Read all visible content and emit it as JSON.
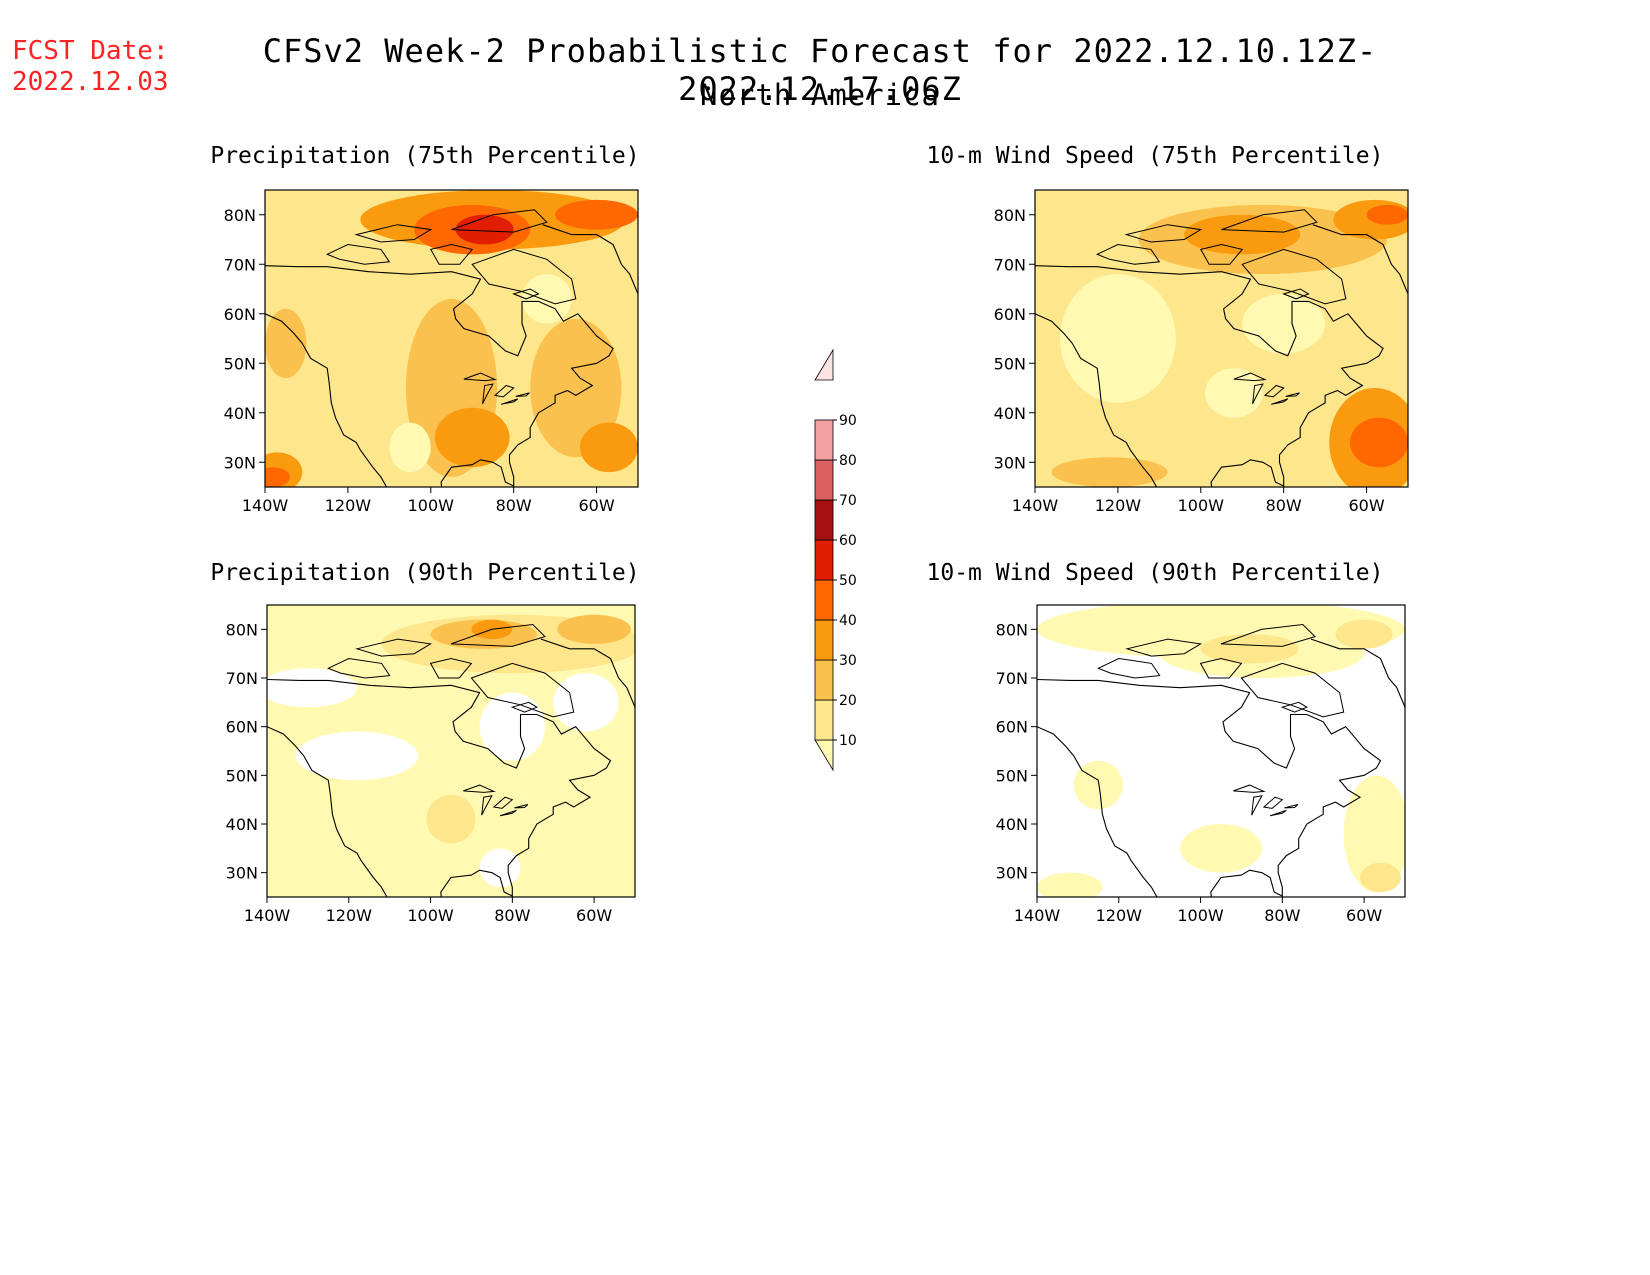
{
  "fcst": {
    "label": "FCST Date:",
    "date": "2022.12.03"
  },
  "title": {
    "main": "CFSv2 Week-2 Probabilistic Forecast for 2022.12.10.12Z-2022.12.17.06Z",
    "region": "North America"
  },
  "axes": {
    "lat_labels": [
      "30N",
      "40N",
      "50N",
      "60N",
      "70N",
      "80N"
    ],
    "lat_values": [
      30,
      40,
      50,
      60,
      70,
      80
    ],
    "lon_labels": [
      "140W",
      "120W",
      "100W",
      "80W",
      "60W"
    ],
    "lon_values": [
      -140,
      -120,
      -100,
      -80,
      -60
    ],
    "lat_range": [
      25,
      85
    ],
    "lon_range": [
      -140,
      -50
    ]
  },
  "panels": [
    {
      "title": "Precipitation (75th Percentile)",
      "base_level": 20,
      "blobs": [
        {
          "lon": -95,
          "lat": 45,
          "rx": 11,
          "ry": 18,
          "level": 30
        },
        {
          "lon": -90,
          "lat": 35,
          "rx": 9,
          "ry": 6,
          "level": 40
        },
        {
          "lon": -65,
          "lat": 45,
          "rx": 11,
          "ry": 14,
          "level": 30
        },
        {
          "lon": -57,
          "lat": 33,
          "rx": 7,
          "ry": 5,
          "level": 40
        },
        {
          "lon": -85,
          "lat": 79,
          "rx": 32,
          "ry": 6,
          "level": 40
        },
        {
          "lon": -90,
          "lat": 77,
          "rx": 14,
          "ry": 5,
          "level": 50
        },
        {
          "lon": -87,
          "lat": 77,
          "rx": 7,
          "ry": 3,
          "level": 60
        },
        {
          "lon": -60,
          "lat": 80,
          "rx": 10,
          "ry": 3,
          "level": 50
        },
        {
          "lon": -137,
          "lat": 28,
          "rx": 6,
          "ry": 4,
          "level": 40
        },
        {
          "lon": -138,
          "lat": 27,
          "rx": 4,
          "ry": 2,
          "level": 50
        },
        {
          "lon": -135,
          "lat": 54,
          "rx": 5,
          "ry": 7,
          "level": 30
        },
        {
          "lon": -72,
          "lat": 63,
          "rx": 6,
          "ry": 5,
          "level": 10
        },
        {
          "lon": -105,
          "lat": 33,
          "rx": 5,
          "ry": 5,
          "level": 10
        }
      ]
    },
    {
      "title": "10-m Wind Speed (75th Percentile)",
      "base_level": 20,
      "blobs": [
        {
          "lon": -58,
          "lat": 34,
          "rx": 11,
          "ry": 11,
          "level": 40
        },
        {
          "lon": -57,
          "lat": 34,
          "rx": 7,
          "ry": 5,
          "level": 50
        },
        {
          "lon": -85,
          "lat": 75,
          "rx": 30,
          "ry": 7,
          "level": 30
        },
        {
          "lon": -90,
          "lat": 76,
          "rx": 14,
          "ry": 4,
          "level": 40
        },
        {
          "lon": -58,
          "lat": 79,
          "rx": 10,
          "ry": 4,
          "level": 40
        },
        {
          "lon": -55,
          "lat": 80,
          "rx": 5,
          "ry": 2,
          "level": 50
        },
        {
          "lon": -120,
          "lat": 55,
          "rx": 14,
          "ry": 13,
          "level": 10
        },
        {
          "lon": -80,
          "lat": 58,
          "rx": 10,
          "ry": 6,
          "level": 10
        },
        {
          "lon": -122,
          "lat": 28,
          "rx": 14,
          "ry": 3,
          "level": 30
        },
        {
          "lon": -92,
          "lat": 44,
          "rx": 7,
          "ry": 5,
          "level": 10
        }
      ]
    },
    {
      "title": "Precipitation (90th Percentile)",
      "base_level": 10,
      "blobs": [
        {
          "lon": -80,
          "lat": 77,
          "rx": 32,
          "ry": 6,
          "level": 20
        },
        {
          "lon": -87,
          "lat": 79,
          "rx": 13,
          "ry": 3,
          "level": 30
        },
        {
          "lon": -60,
          "lat": 80,
          "rx": 9,
          "ry": 3,
          "level": 30
        },
        {
          "lon": -85,
          "lat": 80,
          "rx": 5,
          "ry": 2,
          "level": 40
        },
        {
          "lon": -118,
          "lat": 54,
          "rx": 15,
          "ry": 5,
          "level": 0
        },
        {
          "lon": -80,
          "lat": 60,
          "rx": 8,
          "ry": 7,
          "level": 0
        },
        {
          "lon": -130,
          "lat": 68,
          "rx": 12,
          "ry": 4,
          "level": 0
        },
        {
          "lon": -62,
          "lat": 65,
          "rx": 8,
          "ry": 6,
          "level": 0
        },
        {
          "lon": -95,
          "lat": 41,
          "rx": 6,
          "ry": 5,
          "level": 20
        },
        {
          "lon": -83,
          "lat": 31,
          "rx": 5,
          "ry": 4,
          "level": 0
        }
      ]
    },
    {
      "title": "10-m Wind Speed (90th Percentile)",
      "base_level": 0,
      "blobs": [
        {
          "lon": -95,
          "lat": 80,
          "rx": 45,
          "ry": 6,
          "level": 10
        },
        {
          "lon": -85,
          "lat": 75,
          "rx": 25,
          "ry": 5,
          "level": 10
        },
        {
          "lon": -88,
          "lat": 76,
          "rx": 12,
          "ry": 3,
          "level": 20
        },
        {
          "lon": -60,
          "lat": 79,
          "rx": 7,
          "ry": 3,
          "level": 20
        },
        {
          "lon": -57,
          "lat": 38,
          "rx": 8,
          "ry": 12,
          "level": 10
        },
        {
          "lon": -56,
          "lat": 29,
          "rx": 5,
          "ry": 3,
          "level": 20
        },
        {
          "lon": -95,
          "lat": 35,
          "rx": 10,
          "ry": 5,
          "level": 10
        },
        {
          "lon": -132,
          "lat": 27,
          "rx": 8,
          "ry": 3,
          "level": 10
        },
        {
          "lon": -125,
          "lat": 48,
          "rx": 6,
          "ry": 5,
          "level": 10
        }
      ]
    }
  ],
  "colorbar": {
    "levels": [
      10,
      20,
      30,
      40,
      50,
      60,
      70,
      80,
      90
    ],
    "labels": [
      "10",
      "20",
      "30",
      "40",
      "50",
      "60",
      "70",
      "80",
      "90"
    ],
    "colors": [
      "#fff9b1",
      "#fde68c",
      "#fbc14e",
      "#f99a0f",
      "#ff6800",
      "#e21e00",
      "#a50f0f",
      "#db6060",
      "#f2a0a0",
      "#fde3e3"
    ]
  }
}
